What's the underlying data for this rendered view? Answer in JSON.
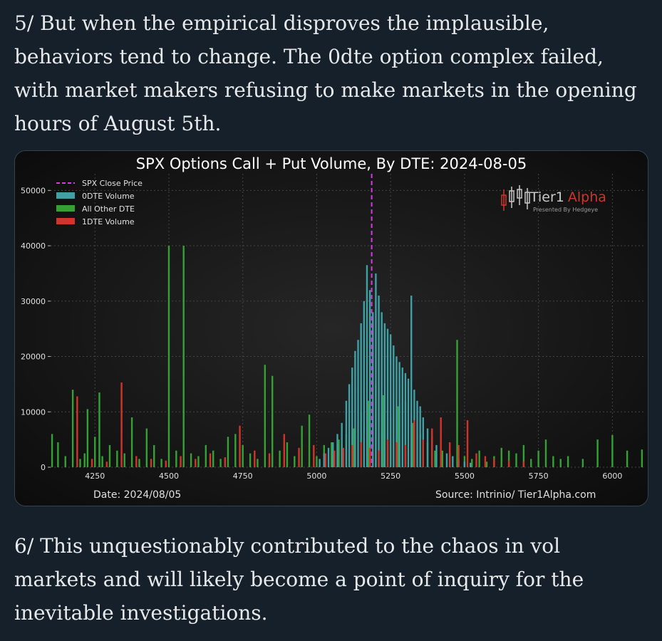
{
  "post": {
    "paragraph1": "5/ But when the empirical disproves the implausible, behaviors tend to change. The 0dte option complex failed, with market makers refusing to make markets in the opening hours of August 5th.",
    "paragraph2": "6/ This unquestionably contributed to the chaos in vol markets and will likely become a point of inquiry for the inevitable investigations."
  },
  "chart_data": {
    "type": "bar",
    "title": "SPX Options Call + Put Volume, By DTE: 2024-08-05",
    "xlabel": "",
    "ylabel": "",
    "xlim": [
      4100,
      6110
    ],
    "ylim": [
      0,
      53000
    ],
    "x_ticks": [
      4250,
      4500,
      4750,
      5000,
      5250,
      5500,
      5750,
      6000
    ],
    "y_ticks": [
      0,
      10000,
      20000,
      30000,
      40000,
      50000
    ],
    "grid": true,
    "legend_position": "top-left",
    "close_price": 5186,
    "legend": [
      {
        "label": "SPX Close Price",
        "color": "#d63adf",
        "kind": "dashed-line"
      },
      {
        "label": "0DTE Volume",
        "color": "#3fa0a5",
        "kind": "bar"
      },
      {
        "label": "All Other DTE",
        "color": "#35a135",
        "kind": "bar"
      },
      {
        "label": "1DTE Volume",
        "color": "#d0352b",
        "kind": "bar"
      }
    ],
    "series": [
      {
        "name": "All Other DTE",
        "color": "#35a135",
        "x": [
          4105,
          4125,
          4150,
          4175,
          4200,
          4215,
          4225,
          4250,
          4265,
          4275,
          4300,
          4325,
          4350,
          4375,
          4400,
          4425,
          4450,
          4475,
          4500,
          4525,
          4550,
          4575,
          4600,
          4625,
          4650,
          4675,
          4700,
          4725,
          4750,
          4775,
          4800,
          4825,
          4850,
          4875,
          4900,
          4925,
          4950,
          4975,
          5000,
          5025,
          5050,
          5075,
          5100,
          5125,
          5150,
          5175,
          5200,
          5225,
          5250,
          5275,
          5300,
          5325,
          5350,
          5375,
          5400,
          5425,
          5450,
          5475,
          5500,
          5525,
          5550,
          5575,
          5600,
          5625,
          5650,
          5675,
          5700,
          5725,
          5750,
          5775,
          5800,
          5825,
          5850,
          5900,
          5950,
          6000,
          6050,
          6100
        ],
        "values": [
          6000,
          4500,
          2000,
          14000,
          1500,
          2500,
          10500,
          5500,
          13500,
          2000,
          4000,
          3000,
          2500,
          9000,
          1500,
          7000,
          4000,
          1500,
          40000,
          3000,
          40000,
          2500,
          2000,
          4000,
          3000,
          1500,
          5500,
          6000,
          4000,
          2500,
          1500,
          18500,
          16500,
          3000,
          4500,
          2000,
          7500,
          9500,
          2000,
          4000,
          4500,
          5000,
          6000,
          7000,
          10000,
          12000,
          15000,
          13000,
          9000,
          11000,
          12000,
          8000,
          6000,
          4500,
          3000,
          3000,
          2500,
          23000,
          2000,
          1500,
          3000,
          1000,
          2000,
          3500,
          3000,
          2500,
          4000,
          1500,
          3000,
          5000,
          2000,
          1500,
          2000,
          1500,
          5000,
          5800,
          3000,
          3200
        ]
      },
      {
        "name": "0DTE Volume",
        "color": "#3fa0a5",
        "x": [
          5010,
          5025,
          5040,
          5055,
          5070,
          5085,
          5100,
          5110,
          5120,
          5130,
          5140,
          5150,
          5160,
          5170,
          5180,
          5190,
          5200,
          5210,
          5220,
          5230,
          5240,
          5250,
          5260,
          5270,
          5280,
          5290,
          5300,
          5310,
          5320,
          5330,
          5340,
          5350,
          5360,
          5375,
          5390,
          5405,
          5420,
          5440,
          5460,
          5480,
          5500,
          5520
        ],
        "values": [
          1500,
          2500,
          3500,
          4500,
          6000,
          8000,
          12000,
          15000,
          18000,
          21000,
          23000,
          26000,
          30000,
          36500,
          32000,
          28000,
          35000,
          31000,
          28000,
          26000,
          25000,
          24000,
          22000,
          20000,
          19000,
          18000,
          17000,
          16000,
          31000,
          14000,
          12000,
          11000,
          9000,
          7000,
          5500,
          4000,
          3000,
          2500,
          2000,
          1500,
          1000,
          800
        ]
      },
      {
        "name": "1DTE Volume",
        "color": "#d0352b",
        "x": [
          4190,
          4240,
          4290,
          4340,
          4390,
          4440,
          4490,
          4540,
          4590,
          4640,
          4690,
          4740,
          4790,
          4840,
          4890,
          4940,
          4990,
          5030,
          5060,
          5090,
          5120,
          5150,
          5180,
          5210,
          5240,
          5270,
          5300,
          5330,
          5360,
          5390,
          5420,
          5450,
          5480,
          5510,
          5540,
          5570,
          5600,
          5650,
          5700
        ],
        "values": [
          12800,
          1500,
          1000,
          15300,
          2000,
          1500,
          1200,
          2000,
          1500,
          2500,
          1800,
          7500,
          3000,
          2500,
          6000,
          3500,
          4000,
          2500,
          3000,
          3500,
          4000,
          4500,
          3500,
          3000,
          5000,
          4500,
          4000,
          8500,
          5000,
          7000,
          9000,
          4500,
          4000,
          8500,
          2500,
          2000,
          1500,
          1200,
          1000
        ]
      }
    ],
    "logo": {
      "brand_light": "Tier1",
      "brand_accent": "Alpha",
      "tagline": "Presented By Hedgeye"
    },
    "footer_left": "Date: 2024/08/05",
    "footer_right": "Source: Intrinio/ Tier1Alpha.com"
  }
}
